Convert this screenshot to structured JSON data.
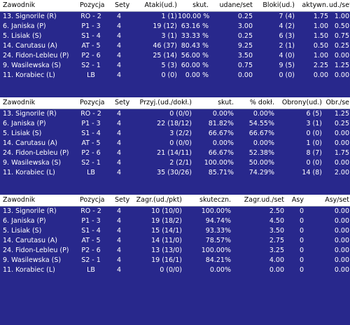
{
  "tables": [
    {
      "headers": [
        "Zawodnik",
        "Pozycja",
        "Sety",
        "Ataki(ud.)",
        "skut.",
        "udane/set",
        "Bloki(ud.)",
        "aktywn.",
        "ud./set"
      ],
      "rows": [
        [
          "13. Signorile (R)",
          "RO - 2",
          "4",
          "1 (1)",
          "100.00 %",
          "0.25",
          "7 (4)",
          "1.75",
          "1.00"
        ],
        [
          "6. Janiska (P)",
          "P1 - 3",
          "4",
          "19 (12)",
          "63.16 %",
          "3.00",
          "4 (2)",
          "1.00",
          "0.50"
        ],
        [
          "5. Lisiak (S)",
          "S1 - 4",
          "4",
          "3 (1)",
          "33.33 %",
          "0.25",
          "6 (3)",
          "1.50",
          "0.75"
        ],
        [
          "14. Carutasu (A)",
          "AT - 5",
          "4",
          "46 (37)",
          "80.43 %",
          "9.25",
          "2 (1)",
          "0.50",
          "0.25"
        ],
        [
          "24. Fidon-Lebleu (P)",
          "P2 - 6",
          "4",
          "25 (14)",
          "56.00 %",
          "3.50",
          "4 (0)",
          "1.00",
          "0.00"
        ],
        [
          "9. Wasilewska (S)",
          "S2 - 1",
          "4",
          "5 (3)",
          "60.00 %",
          "0.75",
          "9 (5)",
          "2.25",
          "1.25"
        ],
        [
          "11. Korabiec (L)",
          "LB",
          "4",
          "0 (0)",
          "0.00 %",
          "0.00",
          "0 (0)",
          "0.00",
          "0.00"
        ]
      ]
    },
    {
      "headers": [
        "Zawodnik",
        "Pozycja",
        "Sety",
        "Przyj.(ud./dokł.)",
        "skut.",
        "% dokł.",
        "Obrony(ud.)",
        "Obr./se"
      ],
      "rows": [
        [
          "13. Signorile (R)",
          "RO - 2",
          "4",
          "0 (0/0)",
          "0.00%",
          "0.00%",
          "6 (5)",
          "1.25"
        ],
        [
          "6. Janiska (P)",
          "P1 - 3",
          "4",
          "22 (18/12)",
          "81.82%",
          "54.55%",
          "3 (1)",
          "0.25"
        ],
        [
          "5. Lisiak (S)",
          "S1 - 4",
          "4",
          "3 (2/2)",
          "66.67%",
          "66.67%",
          "0 (0)",
          "0.00"
        ],
        [
          "14. Carutasu (A)",
          "AT - 5",
          "4",
          "0 (0/0)",
          "0.00%",
          "0.00%",
          "1 (0)",
          "0.00"
        ],
        [
          "24. Fidon-Lebleu (P)",
          "P2 - 6",
          "4",
          "21 (14/11)",
          "66.67%",
          "52.38%",
          "8 (7)",
          "1.75"
        ],
        [
          "9. Wasilewska (S)",
          "S2 - 1",
          "4",
          "2 (2/1)",
          "100.00%",
          "50.00%",
          "0 (0)",
          "0.00"
        ],
        [
          "11. Korabiec (L)",
          "LB",
          "4",
          "35 (30/26)",
          "85.71%",
          "74.29%",
          "14 (8)",
          "2.00"
        ]
      ]
    },
    {
      "headers": [
        "Zawodnik",
        "Pozycja",
        "Sety",
        "Zagr.(ud./pkt)",
        "skuteczn.",
        "Zagr.ud./set",
        "Asy",
        "Asy/set"
      ],
      "rows": [
        [
          "13. Signorile (R)",
          "RO - 2",
          "4",
          "10 (10/0)",
          "100.00%",
          "2.50",
          "0",
          "0.00"
        ],
        [
          "6. Janiska (P)",
          "P1 - 3",
          "4",
          "19 (18/2)",
          "94.74%",
          "4.50",
          "0",
          "0.00"
        ],
        [
          "5. Lisiak (S)",
          "S1 - 4",
          "4",
          "15 (14/1)",
          "93.33%",
          "3.50",
          "0",
          "0.00"
        ],
        [
          "14. Carutasu (A)",
          "AT - 5",
          "4",
          "14 (11/0)",
          "78.57%",
          "2.75",
          "0",
          "0.00"
        ],
        [
          "24. Fidon-Lebleu (P)",
          "P2 - 6",
          "4",
          "13 (13/0)",
          "100.00%",
          "3.25",
          "0",
          "0.00"
        ],
        [
          "9. Wasilewska (S)",
          "S2 - 1",
          "4",
          "19 (16/1)",
          "84.21%",
          "4.00",
          "0",
          "0.00"
        ],
        [
          "11. Korabiec (L)",
          "LB",
          "4",
          "0 (0/0)",
          "0.00%",
          "0.00",
          "0",
          "0.00"
        ]
      ]
    }
  ]
}
